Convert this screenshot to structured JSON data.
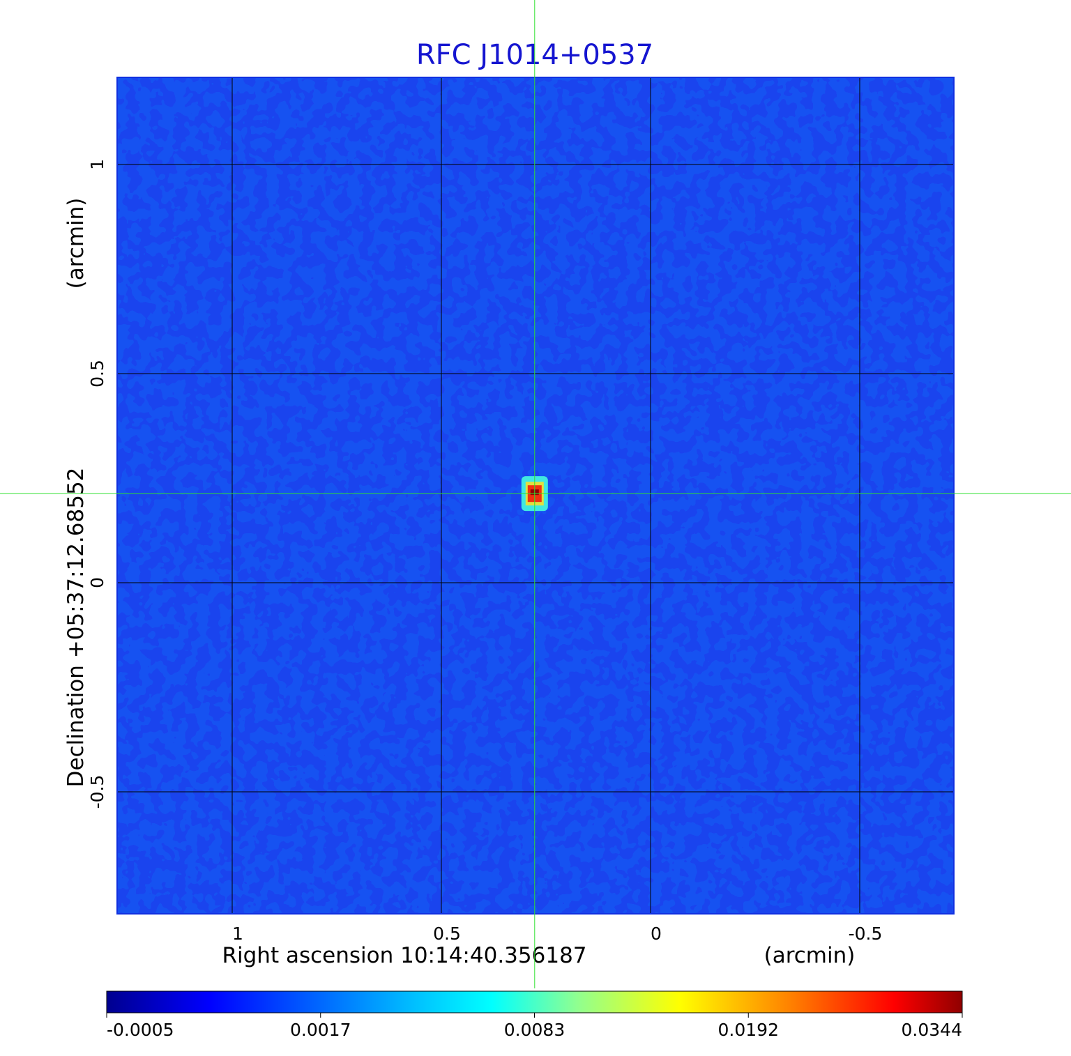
{
  "chart_data": {
    "type": "image",
    "title": "RFC J1014+0537",
    "xlabel": "Right ascension  10:14:40.356187",
    "xunit": "(arcmin)",
    "ylabel": "Declination  +05:37:12.68552",
    "yunit": "(arcmin)",
    "xlim": [
      1.275,
      -0.725
    ],
    "ylim": [
      -0.7917,
      1.2083
    ],
    "xticks": [
      1.0,
      0.5,
      0.0,
      -0.5
    ],
    "yticks": [
      1.0,
      0.5,
      0.0,
      -0.5
    ],
    "grid": true,
    "source": {
      "x": 0.277,
      "y": 0.213
    },
    "colorbar": {
      "ticks": [
        -0.0005,
        0.0017,
        0.0083,
        0.0192,
        0.0344
      ]
    }
  }
}
